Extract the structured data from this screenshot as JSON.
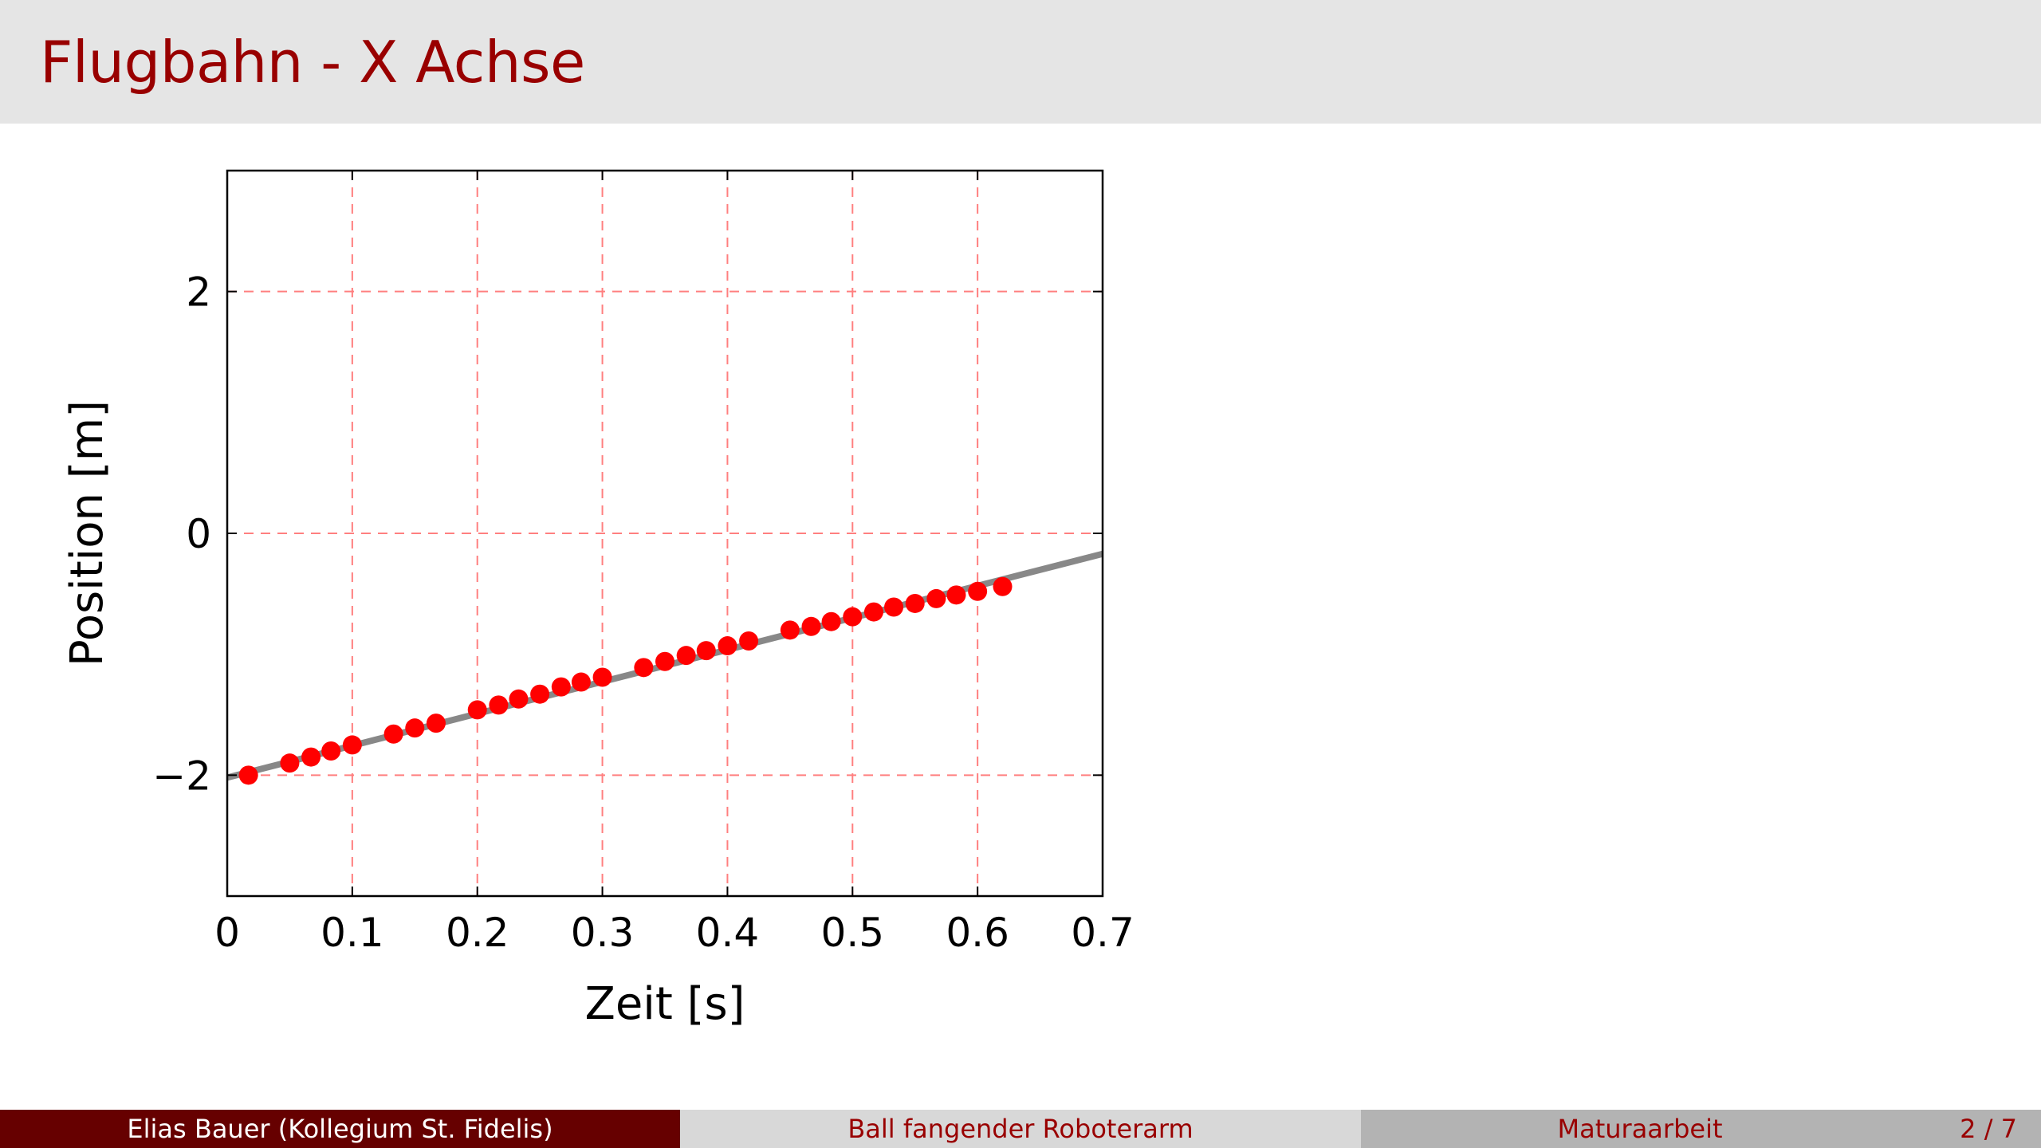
{
  "slide": {
    "title": "Flugbahn - X Achse"
  },
  "footer": {
    "author": "Elias Bauer  (Kollegium St. Fidelis)",
    "talk_title": "Ball fangender Roboterarm",
    "subject": "Maturaarbeit",
    "page": "2 / 7"
  },
  "colors": {
    "title": "#990000",
    "title_bar": "#e5e5e5",
    "footer_left": "#660000",
    "footer_mid": "#d8d8d8",
    "footer_right": "#b3b3b3",
    "grid": "#ff7f7f",
    "points": "#ff0000",
    "fit_line": "#888888"
  },
  "chart_data": {
    "type": "scatter",
    "title": "",
    "xlabel": "Zeit [s]",
    "ylabel": "Position [m]",
    "xlim": [
      0,
      0.7
    ],
    "ylim": [
      -3,
      3
    ],
    "grid": true,
    "grid_style": "dashed",
    "xticks": [
      0,
      0.1,
      0.2,
      0.3,
      0.4,
      0.5,
      0.6,
      0.7
    ],
    "xtick_labels": [
      "0",
      "0.1",
      "0.2",
      "0.3",
      "0.4",
      "0.5",
      "0.6",
      "0.7"
    ],
    "yticks": [
      -2,
      0,
      2
    ],
    "ytick_labels": [
      "−2",
      "0",
      "2"
    ],
    "series": [
      {
        "kind": "points",
        "x": [
          0.017,
          0.05,
          0.067,
          0.083,
          0.1,
          0.133,
          0.15,
          0.167,
          0.2,
          0.217,
          0.233,
          0.25,
          0.267,
          0.283,
          0.3,
          0.333,
          0.35,
          0.367,
          0.383,
          0.4,
          0.417,
          0.45,
          0.467,
          0.483,
          0.5,
          0.517,
          0.533,
          0.55,
          0.567,
          0.583,
          0.6,
          0.62
        ],
        "y": [
          -2.0,
          -1.9,
          -1.85,
          -1.8,
          -1.75,
          -1.66,
          -1.61,
          -1.57,
          -1.46,
          -1.42,
          -1.37,
          -1.33,
          -1.27,
          -1.23,
          -1.19,
          -1.11,
          -1.06,
          -1.01,
          -0.97,
          -0.93,
          -0.89,
          -0.8,
          -0.77,
          -0.73,
          -0.69,
          -0.65,
          -0.61,
          -0.58,
          -0.54,
          -0.51,
          -0.48,
          -0.44
        ]
      },
      {
        "kind": "fit_line",
        "x": [
          0,
          0.7
        ],
        "y": [
          -2.02,
          -0.17
        ]
      }
    ]
  }
}
